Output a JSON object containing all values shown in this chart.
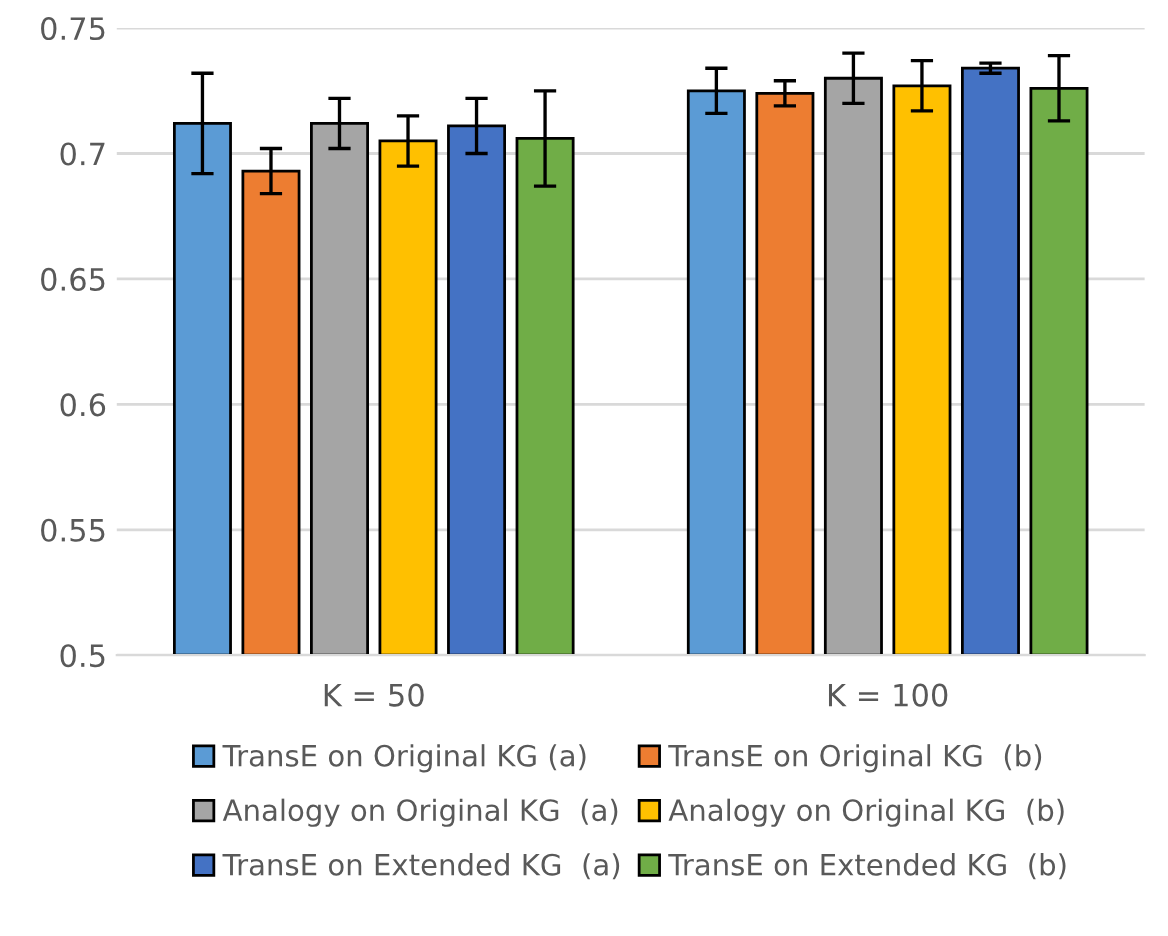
{
  "chart_data": {
    "type": "bar",
    "categories": [
      "K = 50",
      "K = 100"
    ],
    "series": [
      {
        "name": "TransE on Original KG (a)",
        "color": "#5b9bd5",
        "values": [
          0.712,
          0.725
        ],
        "errors": [
          0.02,
          0.009
        ]
      },
      {
        "name": "TransE on Original KG  (b)",
        "color": "#ed7d31",
        "values": [
          0.693,
          0.724
        ],
        "errors": [
          0.009,
          0.005
        ]
      },
      {
        "name": "Analogy on Original KG  (a)",
        "color": "#a5a5a5",
        "values": [
          0.712,
          0.73
        ],
        "errors": [
          0.01,
          0.01
        ]
      },
      {
        "name": "Analogy on Original KG  (b)",
        "color": "#ffc000",
        "values": [
          0.705,
          0.727
        ],
        "errors": [
          0.01,
          0.01
        ]
      },
      {
        "name": "TransE on Extended KG  (a)",
        "color": "#4472c4",
        "values": [
          0.711,
          0.734
        ],
        "errors": [
          0.011,
          0.002
        ]
      },
      {
        "name": "TransE on Extended KG  (b)",
        "color": "#70ad47",
        "values": [
          0.706,
          0.726
        ],
        "errors": [
          0.019,
          0.013
        ]
      }
    ],
    "ylim": [
      0.5,
      0.75
    ],
    "yticks": [
      0.5,
      0.55,
      0.6,
      0.65,
      0.7,
      0.75
    ],
    "grid": "y",
    "legend": "bottom"
  }
}
